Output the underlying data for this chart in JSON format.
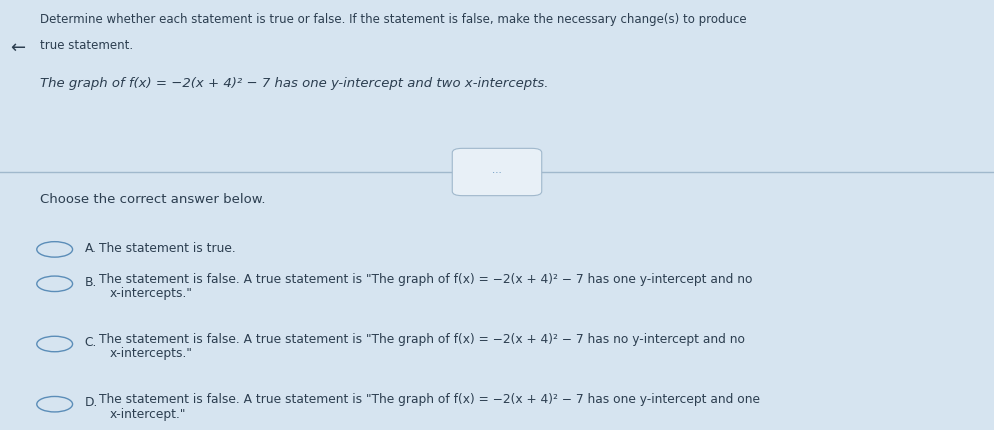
{
  "bg_color": "#d6e4f0",
  "panel_color": "#e8f0f7",
  "title_line1": "Determine whether each statement is true or false. If the statement is false, make the necessary change(s) to produce",
  "title_line2": "true statement.",
  "statement": "The graph of f(x) = −2(x + 4)² − 7 has one y-intercept and two x-intercepts.",
  "choose_text": "Choose the correct answer below.",
  "option_A_letter": "A.",
  "option_A_text": "The statement is true.",
  "option_B_letter": "B.",
  "option_B_line1": "The statement is false. A true statement is \"The graph of f(x) = −2(x + 4)² − 7 has one y-intercept and no",
  "option_B_line2": "x-intercepts.\"",
  "option_C_letter": "C.",
  "option_C_line1": "The statement is false. A true statement is \"The graph of f(x) = −2(x + 4)² − 7 has no y-intercept and no",
  "option_C_line2": "x-intercepts.\"",
  "option_D_letter": "D.",
  "option_D_line1": "The statement is false. A true statement is \"The graph of f(x) = −2(x + 4)² − 7 has one y-intercept and one",
  "option_D_line2": "x-intercept.\"",
  "text_color": "#2c3e50",
  "circle_color": "#5b8db8",
  "line_color": "#a0b8cc",
  "dots_color": "#5b8db8",
  "arrow_color": "#2c3e50"
}
